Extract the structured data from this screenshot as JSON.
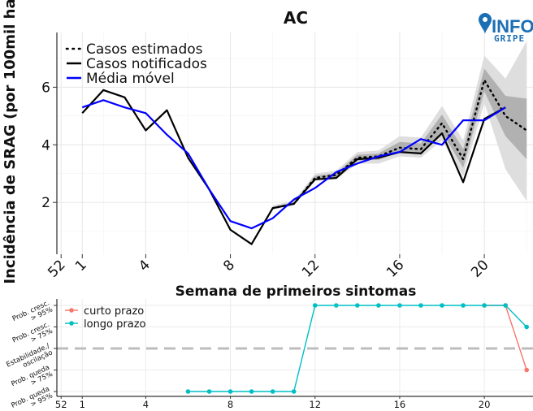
{
  "logo": {
    "text_main": "INFO",
    "text_sub": "GRIPE",
    "colors": {
      "main": "#1b6fb5",
      "pin": "#1b6fb5"
    }
  },
  "colors": {
    "estimated": "#000000",
    "notified": "#000000",
    "moving_avg": "#0000ff",
    "ci_light": "#dcdcdc",
    "ci_dark": "#a9a9a9",
    "short_term": "#f8766d",
    "long_term": "#00bfc4",
    "dashed": "#bdbdbd"
  },
  "chart_data": [
    {
      "type": "line",
      "title": "AC",
      "xlabel": "Semana de primeiros sintomas",
      "ylabel": "Incidência de SRAG (por 100mil ha",
      "xlim": [
        -0.2,
        22.3
      ],
      "ylim": [
        0.2,
        7.9
      ],
      "x_ticks": [
        {
          "x": 0,
          "label": "52"
        },
        {
          "x": 1,
          "label": "1"
        },
        {
          "x": 4,
          "label": "4"
        },
        {
          "x": 8,
          "label": "8"
        },
        {
          "x": 12,
          "label": "12"
        },
        {
          "x": 16,
          "label": "16"
        },
        {
          "x": 20,
          "label": "20"
        }
      ],
      "y_ticks": [
        {
          "y": 2,
          "label": "2"
        },
        {
          "y": 4,
          "label": "4"
        },
        {
          "y": 6,
          "label": "6"
        }
      ],
      "grid": true,
      "legend": {
        "position": "top-left"
      },
      "series": [
        {
          "name": "Casos notificados",
          "style": "solid",
          "color": "#000000",
          "x": [
            1,
            2,
            3,
            4,
            5,
            6,
            7,
            8,
            9,
            10,
            11,
            12,
            13,
            14,
            15,
            16,
            17,
            18,
            19,
            20,
            21
          ],
          "values": [
            5.1,
            5.9,
            5.65,
            4.5,
            5.2,
            3.55,
            2.45,
            1.05,
            0.55,
            1.8,
            1.95,
            2.8,
            2.85,
            3.5,
            3.55,
            3.75,
            3.7,
            4.4,
            2.7,
            4.9,
            5.3
          ]
        },
        {
          "name": "Casos estimados",
          "style": "dotted",
          "color": "#000000",
          "x": [
            10,
            11,
            12,
            13,
            14,
            15,
            16,
            17,
            18,
            19,
            20,
            21,
            22
          ],
          "values": [
            1.8,
            1.95,
            2.85,
            2.95,
            3.55,
            3.6,
            3.9,
            3.85,
            4.75,
            3.5,
            6.25,
            5.0,
            4.5
          ]
        },
        {
          "name": "Média móvel",
          "style": "solid",
          "color": "#0000ff",
          "x": [
            1,
            2,
            3,
            4,
            5,
            6,
            7,
            8,
            9,
            10,
            11,
            12,
            13,
            14,
            15,
            16,
            17,
            18,
            19,
            20,
            21
          ],
          "values": [
            5.3,
            5.55,
            5.3,
            5.1,
            4.35,
            3.7,
            2.45,
            1.35,
            1.1,
            1.45,
            2.1,
            2.5,
            3.05,
            3.35,
            3.6,
            3.75,
            4.2,
            4.0,
            4.85,
            4.85,
            5.3
          ]
        }
      ],
      "ci_outer": {
        "x": [
          10,
          11,
          12,
          13,
          14,
          15,
          16,
          17,
          18,
          19,
          20,
          21,
          22
        ],
        "lower": [
          1.75,
          1.9,
          2.75,
          2.8,
          3.35,
          3.35,
          3.6,
          3.55,
          4.15,
          2.9,
          5.45,
          3.15,
          2.05
        ],
        "upper": [
          1.9,
          2.05,
          3.0,
          3.1,
          3.75,
          3.8,
          4.3,
          4.25,
          5.35,
          4.15,
          7.1,
          6.3,
          7.6
        ]
      },
      "ci_inner": {
        "x": [
          10,
          11,
          12,
          13,
          14,
          15,
          16,
          17,
          18,
          19,
          20,
          21,
          22
        ],
        "lower": [
          1.78,
          1.92,
          2.8,
          2.88,
          3.45,
          3.48,
          3.75,
          3.7,
          4.45,
          3.2,
          5.85,
          4.3,
          3.5
        ],
        "upper": [
          1.84,
          2.0,
          2.92,
          3.02,
          3.65,
          3.7,
          4.1,
          4.05,
          5.05,
          3.85,
          6.65,
          5.7,
          5.6
        ]
      }
    },
    {
      "type": "line",
      "xlim": [
        -0.2,
        22.3
      ],
      "x_ticks": [
        {
          "x": 0,
          "label": "52"
        },
        {
          "x": 1,
          "label": "1"
        },
        {
          "x": 4,
          "label": "4"
        },
        {
          "x": 8,
          "label": "8"
        },
        {
          "x": 12,
          "label": "12"
        },
        {
          "x": 16,
          "label": "16"
        },
        {
          "x": 20,
          "label": "20"
        }
      ],
      "categories": [
        "Prob. queda > 95%",
        "Prob. queda > 75%",
        "Estabilidade./ oscilação",
        "Prob. cresc. > 75%",
        "Prob. cresc. > 95%"
      ],
      "category_values": [
        -2,
        -1,
        0,
        1,
        2
      ],
      "reference_line": 0,
      "legend": {
        "position": "top-left"
      },
      "series": [
        {
          "name": "curto prazo",
          "color": "#f8766d",
          "x": [
            20,
            21,
            22
          ],
          "values": [
            2,
            2,
            -1
          ]
        },
        {
          "name": "longo prazo",
          "color": "#00bfc4",
          "x": [
            6,
            7,
            8,
            9,
            10,
            11,
            12,
            13,
            14,
            15,
            16,
            17,
            18,
            19,
            20,
            21,
            22
          ],
          "values": [
            -2,
            -2,
            -2,
            -2,
            -2,
            -2,
            2,
            2,
            2,
            2,
            2,
            2,
            2,
            2,
            2,
            2,
            1
          ]
        }
      ]
    }
  ]
}
